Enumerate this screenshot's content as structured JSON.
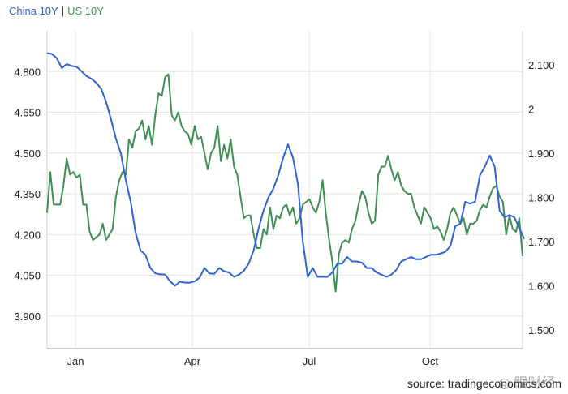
{
  "legend": {
    "china": "China 10Y",
    "separator": "|",
    "us": "US 10Y"
  },
  "source": "source: tradingeconomics.com",
  "watermark": "◎ 眼财经",
  "colors": {
    "china": "#2f63cf",
    "us": "#3f8f55",
    "grid": "#e6e6e6"
  },
  "chart_data": {
    "type": "line",
    "title": "",
    "xlabel": "",
    "ylabel": "",
    "x_ticks": [
      "Jan",
      "Apr",
      "Jul",
      "Oct"
    ],
    "y_left": {
      "range": [
        3.78,
        4.95
      ],
      "ticks": [
        3.9,
        4.05,
        4.2,
        4.35,
        4.5,
        4.65,
        4.8
      ],
      "tick_labels": [
        "3.900",
        "4.050",
        "4.200",
        "4.350",
        "4.500",
        "4.650",
        "4.800"
      ]
    },
    "y_right": {
      "range": [
        1.4575,
        2.1775
      ],
      "ticks": [
        1.5,
        1.6,
        1.7,
        1.8,
        1.9,
        2.0,
        2.1
      ],
      "tick_labels": [
        "1.500",
        "1.600",
        "1.700",
        "1.800",
        "1.900",
        "2",
        "2.100"
      ]
    },
    "grid": true,
    "legend_position": "top-left",
    "series": [
      {
        "name": "US 10Y",
        "axis": "left",
        "x": [
          0,
          2,
          4,
          6,
          8,
          10,
          12,
          14,
          16,
          18,
          20,
          22,
          24,
          26,
          28,
          30,
          32,
          34,
          36,
          38,
          40,
          42,
          44,
          46,
          48,
          50,
          52,
          54,
          56,
          58,
          60,
          62,
          64,
          66,
          68,
          70,
          72,
          74,
          76,
          78,
          80,
          82,
          84,
          86,
          88,
          90,
          92,
          94,
          96,
          98,
          100,
          102,
          104,
          106,
          108,
          110,
          112,
          114,
          116,
          118,
          120,
          122,
          124,
          126,
          128,
          130,
          132,
          134,
          136,
          138,
          140,
          142,
          144,
          146,
          148,
          150,
          152,
          154,
          156,
          158,
          160,
          162,
          164,
          166,
          168,
          170,
          172,
          174,
          176,
          178,
          180,
          182,
          184,
          186,
          188,
          190,
          192,
          194,
          196,
          198,
          200,
          202,
          204,
          206,
          208,
          210,
          212,
          214,
          216,
          218,
          220,
          222,
          224,
          226,
          228,
          230,
          232,
          234,
          236,
          238,
          240,
          242,
          244,
          246,
          248,
          250,
          252,
          254,
          256,
          258,
          260,
          262,
          264,
          266,
          268,
          270,
          272,
          274,
          276,
          278,
          280,
          282,
          284,
          286,
          288,
          290
        ],
        "y": [
          4.28,
          4.43,
          4.31,
          4.31,
          4.31,
          4.38,
          4.48,
          4.42,
          4.43,
          4.41,
          4.42,
          4.31,
          4.31,
          4.21,
          4.18,
          4.19,
          4.2,
          4.24,
          4.18,
          4.2,
          4.22,
          4.34,
          4.4,
          4.43,
          4.42,
          4.55,
          4.52,
          4.58,
          4.59,
          4.62,
          4.55,
          4.6,
          4.53,
          4.64,
          4.72,
          4.71,
          4.78,
          4.79,
          4.64,
          4.62,
          4.65,
          4.6,
          4.58,
          4.57,
          4.53,
          4.6,
          4.55,
          4.56,
          4.5,
          4.44,
          4.5,
          4.52,
          4.6,
          4.47,
          4.53,
          4.48,
          4.55,
          4.45,
          4.42,
          4.34,
          4.26,
          4.27,
          4.27,
          4.2,
          4.15,
          4.15,
          4.22,
          4.2,
          4.3,
          4.22,
          4.27,
          4.26,
          4.3,
          4.31,
          4.27,
          4.3,
          4.24,
          4.26,
          4.31,
          4.32,
          4.33,
          4.3,
          4.28,
          4.32,
          4.4,
          4.28,
          4.18,
          4.1,
          3.99,
          4.13,
          4.17,
          4.18,
          4.17,
          4.22,
          4.25,
          4.31,
          4.36,
          4.34,
          4.28,
          4.24,
          4.25,
          4.42,
          4.45,
          4.45,
          4.49,
          4.44,
          4.4,
          4.43,
          4.38,
          4.36,
          4.35,
          4.35,
          4.3,
          4.27,
          4.24,
          4.3,
          4.28,
          4.26,
          4.22,
          4.23,
          4.21,
          4.18,
          4.22,
          4.28,
          4.3,
          4.27,
          4.24,
          4.26,
          4.2,
          4.24,
          4.24,
          4.25,
          4.29,
          4.31,
          4.3,
          4.34,
          4.37,
          4.38,
          4.34,
          4.32,
          4.2,
          4.27,
          4.22,
          4.21,
          4.26,
          4.12
        ]
      },
      {
        "name": "China 10Y",
        "axis": "right",
        "x": [
          0,
          3,
          6,
          9,
          12,
          15,
          18,
          21,
          24,
          27,
          30,
          33,
          36,
          39,
          42,
          45,
          48,
          51,
          54,
          57,
          60,
          63,
          66,
          69,
          72,
          75,
          78,
          81,
          84,
          87,
          90,
          93,
          96,
          99,
          102,
          105,
          108,
          111,
          114,
          117,
          120,
          123,
          126,
          129,
          132,
          135,
          138,
          141,
          144,
          147,
          150,
          153,
          156,
          159,
          162,
          165,
          168,
          171,
          174,
          177,
          180,
          183,
          186,
          189,
          192,
          195,
          198,
          201,
          204,
          207,
          210,
          213,
          216,
          219,
          222,
          225,
          228,
          231,
          234,
          237,
          240,
          243,
          246,
          249,
          252,
          255,
          258,
          261,
          264,
          267,
          270,
          273,
          276,
          279,
          282,
          285,
          288,
          291
        ],
        "y": [
          2.127,
          2.125,
          2.115,
          2.093,
          2.102,
          2.098,
          2.096,
          2.086,
          2.075,
          2.069,
          2.06,
          2.046,
          2.017,
          1.977,
          1.933,
          1.9,
          1.84,
          1.79,
          1.72,
          1.68,
          1.67,
          1.64,
          1.628,
          1.626,
          1.625,
          1.61,
          1.6,
          1.609,
          1.607,
          1.607,
          1.61,
          1.618,
          1.64,
          1.628,
          1.627,
          1.64,
          1.633,
          1.63,
          1.62,
          1.625,
          1.634,
          1.65,
          1.68,
          1.73,
          1.77,
          1.8,
          1.82,
          1.85,
          1.89,
          1.92,
          1.89,
          1.83,
          1.7,
          1.62,
          1.64,
          1.62,
          1.62,
          1.62,
          1.63,
          1.65,
          1.65,
          1.665,
          1.655,
          1.655,
          1.652,
          1.64,
          1.64,
          1.63,
          1.625,
          1.62,
          1.625,
          1.636,
          1.655,
          1.66,
          1.665,
          1.66,
          1.66,
          1.665,
          1.67,
          1.67,
          1.673,
          1.677,
          1.69,
          1.735,
          1.74,
          1.79,
          1.786,
          1.79,
          1.85,
          1.87,
          1.895,
          1.87,
          1.77,
          1.755,
          1.76,
          1.755,
          1.73,
          1.706
        ]
      }
    ]
  }
}
